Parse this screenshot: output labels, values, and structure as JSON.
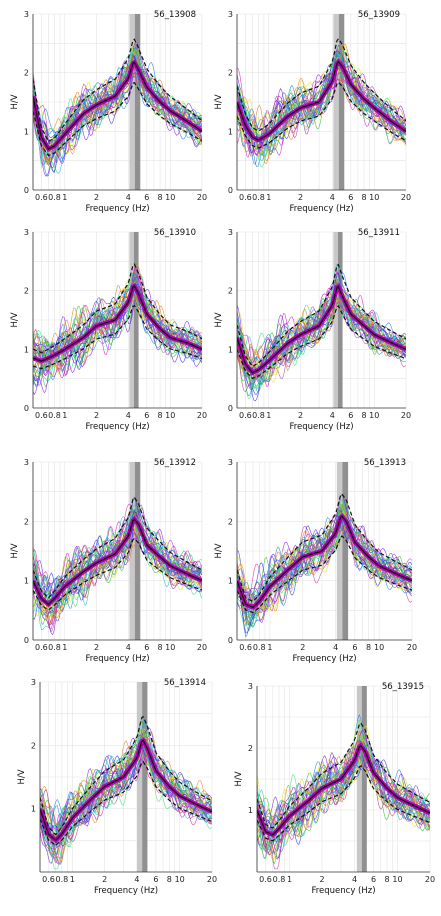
{
  "chart_data": [
    {
      "type": "line",
      "title": "56_13908",
      "xlabel": "Frequency (Hz)",
      "ylabel": "H/V",
      "xscale": "log",
      "xlim": [
        0.5,
        20
      ],
      "ylim": [
        0,
        3
      ],
      "x_ticks": [
        "0.6",
        "0.8",
        "1",
        "2",
        "4",
        "6",
        "8",
        "10",
        "20"
      ],
      "y_ticks": [
        "0",
        "1",
        "2",
        "3"
      ],
      "peak_band_hz": [
        4.1,
        5.2
      ],
      "series": [
        {
          "x": [
            0.5,
            0.6,
            0.7,
            0.8,
            1,
            1.5,
            2,
            3,
            4,
            4.5,
            5,
            6,
            8,
            10,
            15,
            20
          ],
          "values": [
            1.6,
            0.9,
            0.7,
            0.75,
            0.95,
            1.3,
            1.45,
            1.6,
            1.9,
            2.2,
            2.05,
            1.75,
            1.5,
            1.35,
            1.15,
            1.0
          ]
        }
      ]
    },
    {
      "type": "line",
      "title": "56_13909",
      "xlabel": "Frequency (Hz)",
      "ylabel": "H/V",
      "xscale": "log",
      "xlim": [
        0.5,
        20
      ],
      "ylim": [
        0,
        3
      ],
      "x_ticks": [
        "0.6",
        "0.8",
        "1",
        "2",
        "4",
        "6",
        "8",
        "10",
        "20"
      ],
      "y_ticks": [
        "0",
        "1",
        "2",
        "3"
      ],
      "peak_band_hz": [
        4.1,
        5.2
      ],
      "series": [
        {
          "x": [
            0.5,
            0.6,
            0.7,
            0.8,
            1,
            1.5,
            2,
            3,
            4,
            4.5,
            5,
            6,
            8,
            10,
            15,
            20
          ],
          "values": [
            1.5,
            1.1,
            0.9,
            0.85,
            0.95,
            1.25,
            1.4,
            1.5,
            1.85,
            2.2,
            2.1,
            1.8,
            1.55,
            1.4,
            1.15,
            1.0
          ]
        }
      ]
    },
    {
      "type": "line",
      "title": "56_13910",
      "xlabel": "Frequency (Hz)",
      "ylabel": "H/V",
      "xscale": "log",
      "xlim": [
        0.5,
        20
      ],
      "ylim": [
        0,
        3
      ],
      "x_ticks": [
        "0.6",
        "0.8",
        "1",
        "2",
        "4",
        "6",
        "8",
        "10",
        "20"
      ],
      "y_ticks": [
        "0",
        "1",
        "2",
        "3"
      ],
      "peak_band_hz": [
        4.1,
        5.0
      ],
      "series": [
        {
          "x": [
            0.5,
            0.6,
            0.7,
            0.8,
            1,
            1.5,
            2,
            3,
            4,
            4.5,
            5,
            6,
            8,
            10,
            15,
            20
          ],
          "values": [
            0.85,
            0.8,
            0.85,
            0.9,
            1.0,
            1.2,
            1.4,
            1.5,
            1.8,
            2.1,
            1.95,
            1.6,
            1.35,
            1.2,
            1.1,
            1.0
          ]
        }
      ]
    },
    {
      "type": "line",
      "title": "56_13911",
      "xlabel": "Frequency (Hz)",
      "ylabel": "H/V",
      "xscale": "log",
      "xlim": [
        0.5,
        20
      ],
      "ylim": [
        0,
        3
      ],
      "x_ticks": [
        "0.6",
        "0.8",
        "1",
        "2",
        "4",
        "6",
        "8",
        "10",
        "20"
      ],
      "y_ticks": [
        "0",
        "1",
        "2",
        "3"
      ],
      "peak_band_hz": [
        4.1,
        5.0
      ],
      "series": [
        {
          "x": [
            0.5,
            0.6,
            0.7,
            0.8,
            1,
            1.5,
            2,
            3,
            4,
            4.5,
            5,
            6,
            8,
            10,
            15,
            20
          ],
          "values": [
            1.2,
            0.75,
            0.6,
            0.65,
            0.8,
            1.1,
            1.25,
            1.4,
            1.75,
            2.1,
            1.9,
            1.6,
            1.4,
            1.25,
            1.1,
            1.0
          ]
        }
      ]
    },
    {
      "type": "line",
      "title": "56_13912",
      "xlabel": "Frequency (Hz)",
      "ylabel": "H/V",
      "xscale": "log",
      "xlim": [
        0.5,
        20
      ],
      "ylim": [
        0,
        3
      ],
      "x_ticks": [
        "0.6",
        "0.8",
        "1",
        "2",
        "4",
        "6",
        "8",
        "10",
        "20"
      ],
      "y_ticks": [
        "0",
        "1",
        "2",
        "3"
      ],
      "peak_band_hz": [
        4.1,
        5.2
      ],
      "series": [
        {
          "x": [
            0.5,
            0.6,
            0.7,
            0.8,
            1,
            1.5,
            2,
            3,
            4,
            4.5,
            5,
            6,
            8,
            10,
            15,
            20
          ],
          "values": [
            1.0,
            0.7,
            0.6,
            0.7,
            0.9,
            1.15,
            1.3,
            1.45,
            1.75,
            2.05,
            1.95,
            1.6,
            1.4,
            1.25,
            1.1,
            1.0
          ]
        }
      ]
    },
    {
      "type": "line",
      "title": "56_13913",
      "xlabel": "Frequency (Hz)",
      "ylabel": "H/V",
      "xscale": "log",
      "xlim": [
        0.5,
        20
      ],
      "ylim": [
        0,
        3
      ],
      "x_ticks": [
        "0.6",
        "0.8",
        "1",
        "2",
        "4",
        "6",
        "8",
        "10",
        "20"
      ],
      "y_ticks": [
        "0",
        "1",
        "2",
        "3"
      ],
      "peak_band_hz": [
        4.1,
        5.2
      ],
      "series": [
        {
          "x": [
            0.5,
            0.6,
            0.7,
            0.8,
            1,
            1.5,
            2,
            3,
            4,
            4.5,
            5,
            6,
            8,
            10,
            15,
            20
          ],
          "values": [
            1.0,
            0.6,
            0.55,
            0.65,
            0.9,
            1.2,
            1.4,
            1.5,
            1.8,
            2.1,
            2.0,
            1.65,
            1.4,
            1.25,
            1.1,
            1.0
          ]
        }
      ]
    },
    {
      "type": "line",
      "title": "56_13914",
      "xlabel": "Frequency (Hz)",
      "ylabel": "H/V",
      "xscale": "log",
      "xlim": [
        0.5,
        20
      ],
      "ylim": [
        0,
        3
      ],
      "x_ticks": [
        "0.6",
        "0.8",
        "1",
        "2",
        "4",
        "6",
        "8",
        "10",
        "20"
      ],
      "y_ticks": [
        "1",
        "2",
        "3"
      ],
      "peak_band_hz": [
        4.0,
        5.0
      ],
      "series": [
        {
          "x": [
            0.5,
            0.6,
            0.7,
            0.8,
            1,
            1.5,
            2,
            3,
            4,
            4.5,
            5,
            6,
            8,
            10,
            15,
            20
          ],
          "values": [
            1.0,
            0.6,
            0.5,
            0.6,
            0.85,
            1.15,
            1.35,
            1.5,
            1.8,
            2.1,
            1.95,
            1.6,
            1.35,
            1.2,
            1.05,
            0.95
          ]
        }
      ]
    },
    {
      "type": "line",
      "title": "56_13915",
      "xlabel": "Frequency (Hz)",
      "ylabel": "H/V",
      "xscale": "log",
      "xlim": [
        0.5,
        20
      ],
      "ylim": [
        0,
        3
      ],
      "x_ticks": [
        "0.6",
        "0.8",
        "1",
        "2",
        "4",
        "6",
        "8",
        "10",
        "20"
      ],
      "y_ticks": [
        "1",
        "2",
        "3"
      ],
      "peak_band_hz": [
        4.2,
        5.2
      ],
      "series": [
        {
          "x": [
            0.5,
            0.6,
            0.7,
            0.8,
            1,
            1.5,
            2,
            3,
            4,
            4.5,
            5,
            6,
            8,
            10,
            15,
            20
          ],
          "values": [
            1.0,
            0.65,
            0.6,
            0.7,
            0.9,
            1.15,
            1.35,
            1.5,
            1.8,
            2.05,
            1.95,
            1.6,
            1.35,
            1.2,
            1.05,
            0.95
          ]
        }
      ]
    }
  ],
  "colors": {
    "windows": [
      "#d020c0",
      "#3030e0",
      "#20c0c0",
      "#30c030",
      "#e0e020",
      "#e08020",
      "#8020e0",
      "#2080e0",
      "#c040a0",
      "#40e080"
    ],
    "mean_curve": "#111111",
    "std_curve": "#111111",
    "mean_halo": "#b000b0",
    "peak_band_outer": "#c8c8c8",
    "peak_band_inner": "#909090",
    "grid": "#e4e4e4"
  }
}
